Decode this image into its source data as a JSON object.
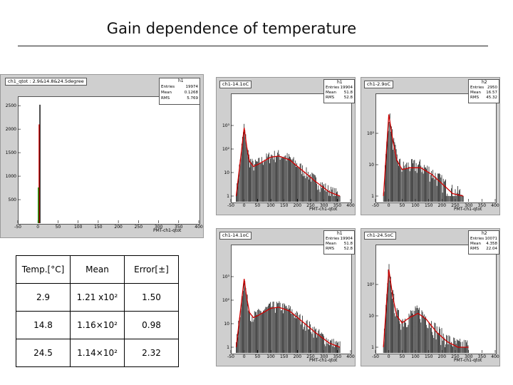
{
  "title": "Gain dependence of temperature",
  "chart_data": [
    {
      "type": "histogram",
      "name": "ch1_qtot : 2.9&14.8&24.5degree",
      "hist_id": "h1",
      "xlabel": "PMT-ch1-qtot",
      "xlim": [
        -50,
        400
      ],
      "ylim": [
        0,
        2700
      ],
      "x_ticks": [
        -50,
        0,
        50,
        100,
        150,
        200,
        250,
        300,
        350,
        400
      ],
      "y_ticks": [
        500,
        1000,
        1500,
        2000,
        2500
      ],
      "stats": {
        "Entries": "19974",
        "Mean": "0.1268",
        "RMS": "5.769"
      },
      "series": [
        {
          "name": "black",
          "color": "#000000",
          "x": [
            5
          ],
          "y": [
            2520
          ]
        },
        {
          "name": "red",
          "color": "#d00000",
          "x": [
            3
          ],
          "y": [
            2100
          ]
        },
        {
          "name": "green",
          "color": "#009900",
          "x": [
            1
          ],
          "y": [
            760
          ]
        }
      ]
    },
    {
      "type": "histogram",
      "name": "ch1-14.1oC",
      "hist_id": "h1",
      "xlabel": "PMT-ch1-qtot",
      "log_y": true,
      "xlim": [
        -50,
        400
      ],
      "x_ticks": [
        -50,
        0,
        50,
        100,
        150,
        200,
        250,
        300,
        350,
        400
      ],
      "y_ticks": [
        "1",
        "10",
        "10²",
        "10³"
      ],
      "stats": {
        "Entries": "19904",
        "Mean": "51.8",
        "RMS": "52.8"
      },
      "fit": {
        "color": "#d00000",
        "x": [
          -30,
          0,
          10,
          20,
          35,
          60,
          100,
          130,
          170,
          220,
          270,
          320,
          360
        ],
        "y": [
          1,
          800,
          120,
          30,
          18,
          25,
          45,
          50,
          35,
          12,
          4,
          1.5,
          1
        ]
      }
    },
    {
      "type": "histogram",
      "name": "ch1-2.9oC",
      "hist_id": "h2",
      "xlabel": "PMT-ch1-qtot",
      "log_y": true,
      "xlim": [
        -50,
        400
      ],
      "x_ticks": [
        -50,
        0,
        50,
        100,
        150,
        200,
        250,
        300,
        350,
        400
      ],
      "y_ticks": [
        "1",
        "10",
        "10²"
      ],
      "stats": {
        "Entries": "2950",
        "Mean": "16.57",
        "RMS": "45.32"
      },
      "fit": {
        "color": "#d00000",
        "x": [
          -20,
          0,
          15,
          30,
          50,
          80,
          120,
          160,
          200,
          240,
          280
        ],
        "y": [
          1,
          400,
          60,
          14,
          7,
          8,
          8,
          5,
          2.5,
          1.2,
          1
        ]
      }
    },
    {
      "type": "histogram",
      "name": "ch1-14.1oC",
      "hist_id": "h1",
      "xlabel": "PMT-ch1-qtot",
      "log_y": true,
      "xlim": [
        -50,
        400
      ],
      "x_ticks": [
        -50,
        0,
        50,
        100,
        150,
        200,
        250,
        300,
        350,
        400
      ],
      "y_ticks": [
        "1",
        "10",
        "10²",
        "10³"
      ],
      "stats": {
        "Entries": "19904",
        "Mean": "51.8",
        "RMS": "52.8"
      },
      "fit": {
        "color": "#d00000",
        "x": [
          -30,
          0,
          10,
          20,
          35,
          60,
          100,
          130,
          170,
          220,
          270,
          320,
          360
        ],
        "y": [
          1,
          800,
          120,
          30,
          18,
          25,
          45,
          50,
          35,
          12,
          4,
          1.5,
          1
        ]
      }
    },
    {
      "type": "histogram",
      "name": "ch1-24.5oC",
      "hist_id": "h2",
      "xlabel": "PMT-ch1-qtot",
      "log_y": true,
      "xlim": [
        -50,
        400
      ],
      "x_ticks": [
        -50,
        0,
        50,
        100,
        150,
        200,
        250,
        300,
        350,
        400
      ],
      "y_ticks": [
        "1",
        "10",
        "10²"
      ],
      "stats": {
        "Entries": "10071",
        "Mean": "4.358",
        "RMS": "22.04"
      },
      "fit": {
        "color": "#d00000",
        "x": [
          -20,
          0,
          15,
          30,
          50,
          80,
          110,
          140,
          180,
          220,
          260,
          300
        ],
        "y": [
          1,
          300,
          40,
          10,
          6,
          9,
          12,
          8,
          3,
          1.5,
          1,
          1
        ]
      }
    }
  ],
  "table": {
    "headers": [
      "Temp.[°C]",
      "Mean",
      "Error[±]"
    ],
    "rows": [
      [
        "2.9",
        "1.21 x10²",
        "1.50"
      ],
      [
        "14.8",
        "1.16×10²",
        "0.98"
      ],
      [
        "24.5",
        "1.14×10²",
        "2.32"
      ]
    ]
  }
}
